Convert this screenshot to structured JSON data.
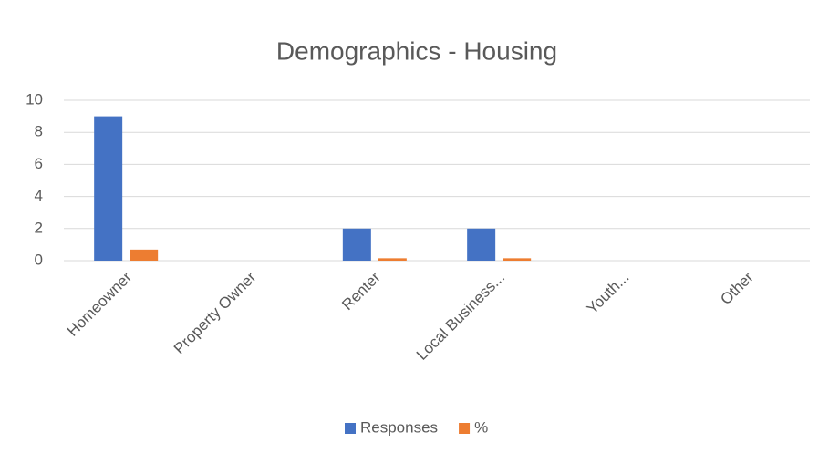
{
  "chart_data": {
    "type": "bar",
    "title": "Demographics - Housing",
    "categories": [
      "Homeowner",
      "Property Owner",
      "Renter",
      "Local Business...",
      "Youth...",
      "Other"
    ],
    "series": [
      {
        "name": "Responses",
        "color": "#4472c4",
        "values": [
          9,
          0,
          2,
          2,
          0,
          0
        ]
      },
      {
        "name": "%",
        "color": "#ed7d31",
        "values": [
          0.69,
          0,
          0.15,
          0.15,
          0,
          0
        ]
      }
    ],
    "ylim": [
      0,
      10
    ],
    "yticks": [
      0,
      2,
      4,
      6,
      8,
      10
    ],
    "grid": true,
    "legend": "bottom"
  }
}
